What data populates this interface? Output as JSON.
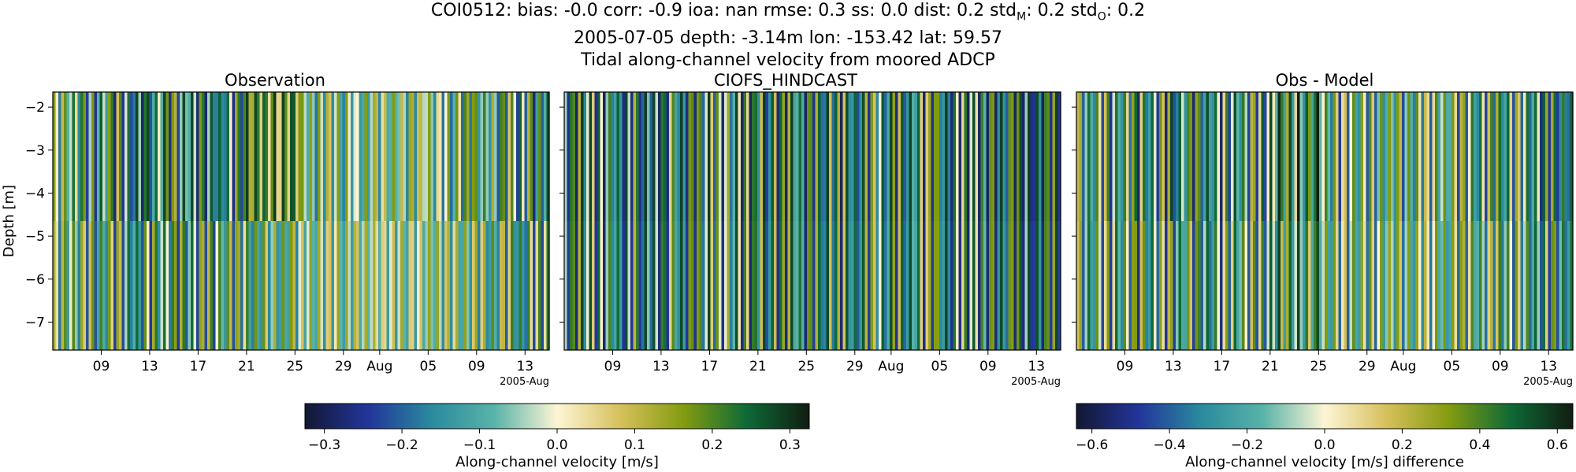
{
  "title": {
    "line1_prefix": "COI0512: bias: -0.0  corr: -0.9  ioa: nan  rmse: 0.3  ss: 0.0  dist: 0.2  std",
    "std_m_sub": "M",
    "line1_mid": ": 0.2  std",
    "std_o_sub": "O",
    "line1_suffix": ": 0.2",
    "line2": "2005-07-05 depth: -3.14m lon: -153.42 lat: 59.57",
    "line3": "Tidal along-channel velocity from moored ADCP"
  },
  "chart_data": [
    {
      "type": "heatmap",
      "title": "Observation",
      "ylabel": "Depth [m]",
      "ylim": [
        -7.65,
        -1.65
      ],
      "yticks": [
        -2,
        -3,
        -4,
        -5,
        -6,
        -7
      ],
      "xticks": [
        "09",
        "13",
        "17",
        "21",
        "25",
        "29",
        "Aug",
        "05",
        "09",
        "13"
      ],
      "x_offset_label": "2005-Aug",
      "xlim": [
        "2005-07-05",
        "2005-08-15"
      ],
      "depth_bins": [
        -2.0,
        -3.14,
        -6.0
      ],
      "colormap": "delta",
      "clim": [
        -0.32,
        0.32
      ]
    },
    {
      "type": "heatmap",
      "title": "CIOFS_HINDCAST",
      "ylim": [
        -7.65,
        -1.65
      ],
      "yticks": [
        -2,
        -3,
        -4,
        -5,
        -6,
        -7
      ],
      "xticks": [
        "09",
        "13",
        "17",
        "21",
        "25",
        "29",
        "Aug",
        "05",
        "09",
        "13"
      ],
      "x_offset_label": "2005-Aug",
      "xlim": [
        "2005-07-05",
        "2005-08-15"
      ],
      "colormap": "delta",
      "clim": [
        -0.32,
        0.32
      ]
    },
    {
      "type": "heatmap",
      "title": "Obs - Model",
      "ylim": [
        -7.65,
        -1.65
      ],
      "yticks": [
        -2,
        -3,
        -4,
        -5,
        -6,
        -7
      ],
      "xticks": [
        "09",
        "13",
        "17",
        "21",
        "25",
        "29",
        "Aug",
        "05",
        "09",
        "13"
      ],
      "x_offset_label": "2005-Aug",
      "xlim": [
        "2005-07-05",
        "2005-08-15"
      ],
      "colormap": "delta",
      "clim": [
        -0.64,
        0.64
      ]
    }
  ],
  "colorbars": [
    {
      "label": "Along-channel velocity [m/s]",
      "ticks": [
        "−0.3",
        "−0.2",
        "−0.1",
        "0.0",
        "0.1",
        "0.2",
        "0.3"
      ],
      "tick_values": [
        -0.3,
        -0.2,
        -0.1,
        0.0,
        0.1,
        0.2,
        0.3
      ],
      "range": [
        -0.325,
        0.325
      ]
    },
    {
      "label": "Along-channel velocity [m/s] difference",
      "ticks": [
        "−0.6",
        "−0.4",
        "−0.2",
        "0.0",
        "0.2",
        "0.4",
        "0.6"
      ],
      "tick_values": [
        -0.6,
        -0.4,
        -0.2,
        0.0,
        0.2,
        0.4,
        0.6
      ],
      "range": [
        -0.64,
        0.64
      ]
    }
  ],
  "colors": {
    "cmap_stops": [
      "#121833",
      "#22359a",
      "#2a8a9e",
      "#58b3a8",
      "#fdf5d5",
      "#d6c05b",
      "#849c10",
      "#0e6a36",
      "#111d12"
    ]
  }
}
